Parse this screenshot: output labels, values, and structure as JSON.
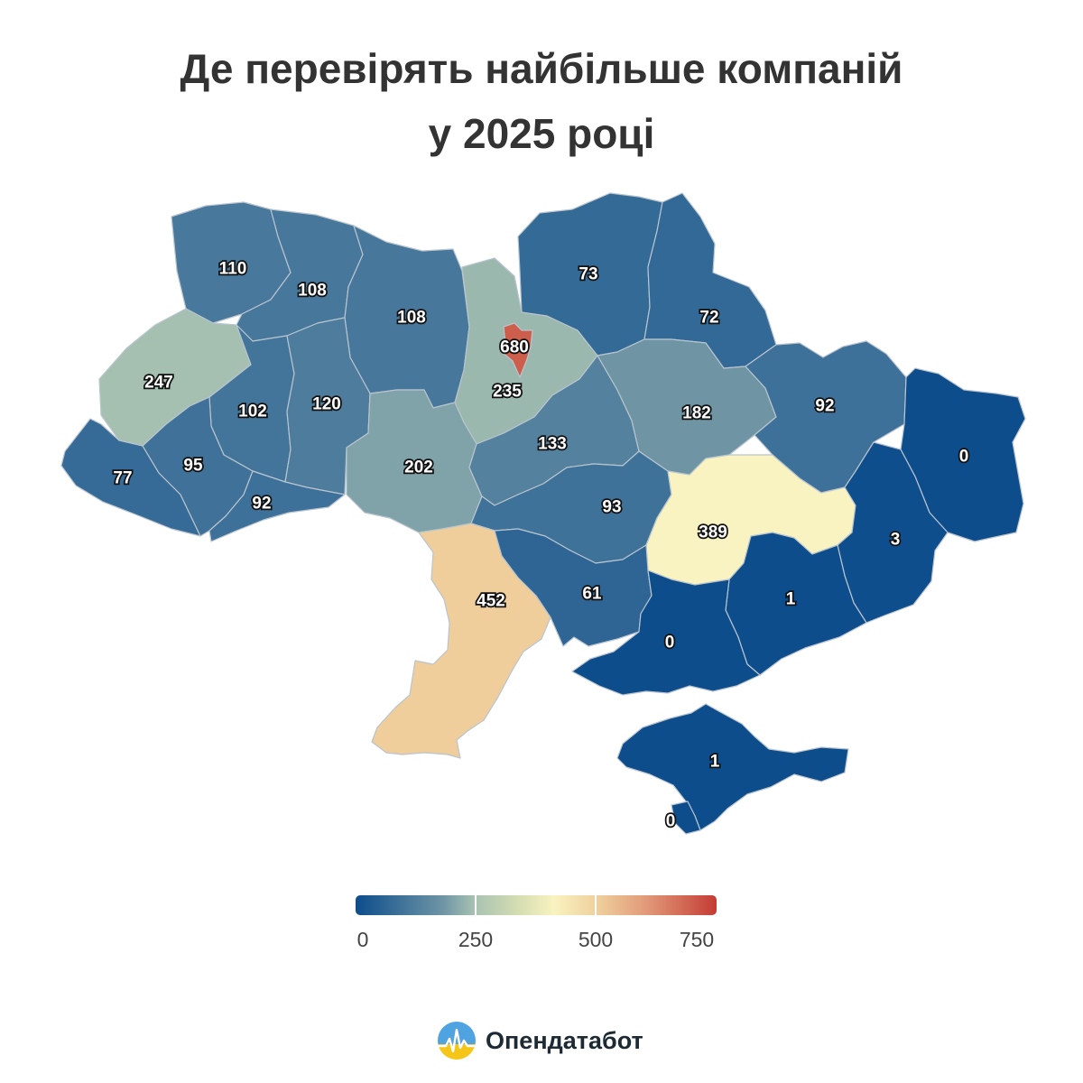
{
  "title": {
    "line1": "Де перевірять найбільше компаній",
    "line2": "у 2025 році"
  },
  "colors": {
    "scale": [
      "#0d4d8c",
      "#6d94a5",
      "#a8c2b2",
      "#f9f3c0",
      "#efcf9c",
      "#c43c34"
    ],
    "region_border": "#b9c4cf",
    "label_fill": "#ffffff",
    "label_stroke": "#111111"
  },
  "legend": {
    "min": 0,
    "max": 750,
    "ticks": [
      "0",
      "250",
      "500",
      "750"
    ]
  },
  "regions": [
    {
      "id": "volyn",
      "value": "110"
    },
    {
      "id": "rivne",
      "value": "108"
    },
    {
      "id": "zhytomyr",
      "value": "108"
    },
    {
      "id": "kyiv-city",
      "value": "680"
    },
    {
      "id": "kyiv-oblast",
      "value": "235"
    },
    {
      "id": "chernihiv",
      "value": "73"
    },
    {
      "id": "sumy",
      "value": "72"
    },
    {
      "id": "lviv",
      "value": "247"
    },
    {
      "id": "ternopil",
      "value": "102"
    },
    {
      "id": "khmelnytskyi",
      "value": "120"
    },
    {
      "id": "cherkasy",
      "value": "133"
    },
    {
      "id": "poltava",
      "value": "182"
    },
    {
      "id": "kharkiv",
      "value": "92"
    },
    {
      "id": "luhansk",
      "value": "0"
    },
    {
      "id": "zakarpattia",
      "value": "77"
    },
    {
      "id": "ivano-frankivsk",
      "value": "95"
    },
    {
      "id": "chernivtsi",
      "value": "92"
    },
    {
      "id": "vinnytsia",
      "value": "202"
    },
    {
      "id": "kirovohrad",
      "value": "93"
    },
    {
      "id": "dnipropetrovsk",
      "value": "389"
    },
    {
      "id": "donetsk",
      "value": "3"
    },
    {
      "id": "odesa",
      "value": "452"
    },
    {
      "id": "mykolaiv",
      "value": "61"
    },
    {
      "id": "zaporizhzhia",
      "value": "1"
    },
    {
      "id": "kherson",
      "value": "0"
    },
    {
      "id": "crimea",
      "value": "1"
    },
    {
      "id": "sevastopol",
      "value": "0"
    }
  ],
  "brand": {
    "name": "Опендатабот",
    "logo": "opendatabot-logo"
  }
}
